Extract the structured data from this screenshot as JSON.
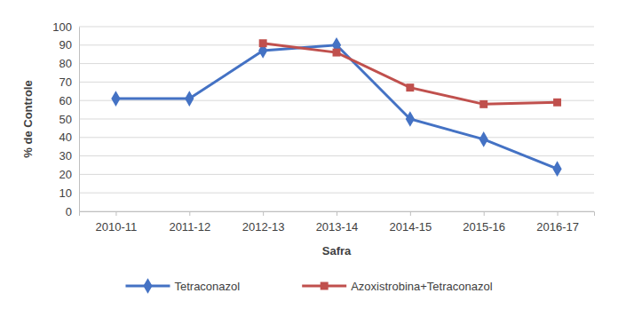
{
  "chart_data": {
    "type": "line",
    "x_label": "Safra",
    "y_label": "% de Controle",
    "categories": [
      "2010-11",
      "2011-12",
      "2012-13",
      "2013-14",
      "2014-15",
      "2015-16",
      "2016-17"
    ],
    "series": [
      {
        "name": "Tetraconazol",
        "color": "#4472c4",
        "marker": "diamond",
        "line_style": "solid",
        "values": [
          61,
          61,
          87,
          90,
          50,
          39,
          23
        ]
      },
      {
        "name": "Azoxistrobina+Tetraconazol",
        "color": "#c0504d",
        "marker": "square",
        "line_style": "solid",
        "values": [
          null,
          null,
          91,
          86,
          67,
          58,
          59
        ]
      }
    ],
    "ylim": [
      0,
      100
    ],
    "yticks": [
      0,
      10,
      20,
      30,
      40,
      50,
      60,
      70,
      80,
      90,
      100
    ],
    "grid": true,
    "legend": "bottom"
  }
}
